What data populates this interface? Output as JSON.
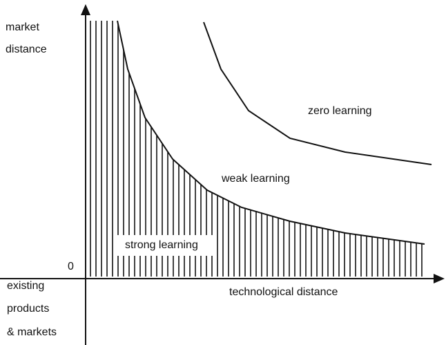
{
  "axes": {
    "y_label": [
      "market",
      "distance"
    ],
    "origin": "0",
    "x_label": "technological distance",
    "corner_label": [
      "existing",
      "products",
      "& markets"
    ]
  },
  "regions": {
    "zero": "zero learning",
    "weak": "weak learning",
    "strong": "strong learning"
  }
}
